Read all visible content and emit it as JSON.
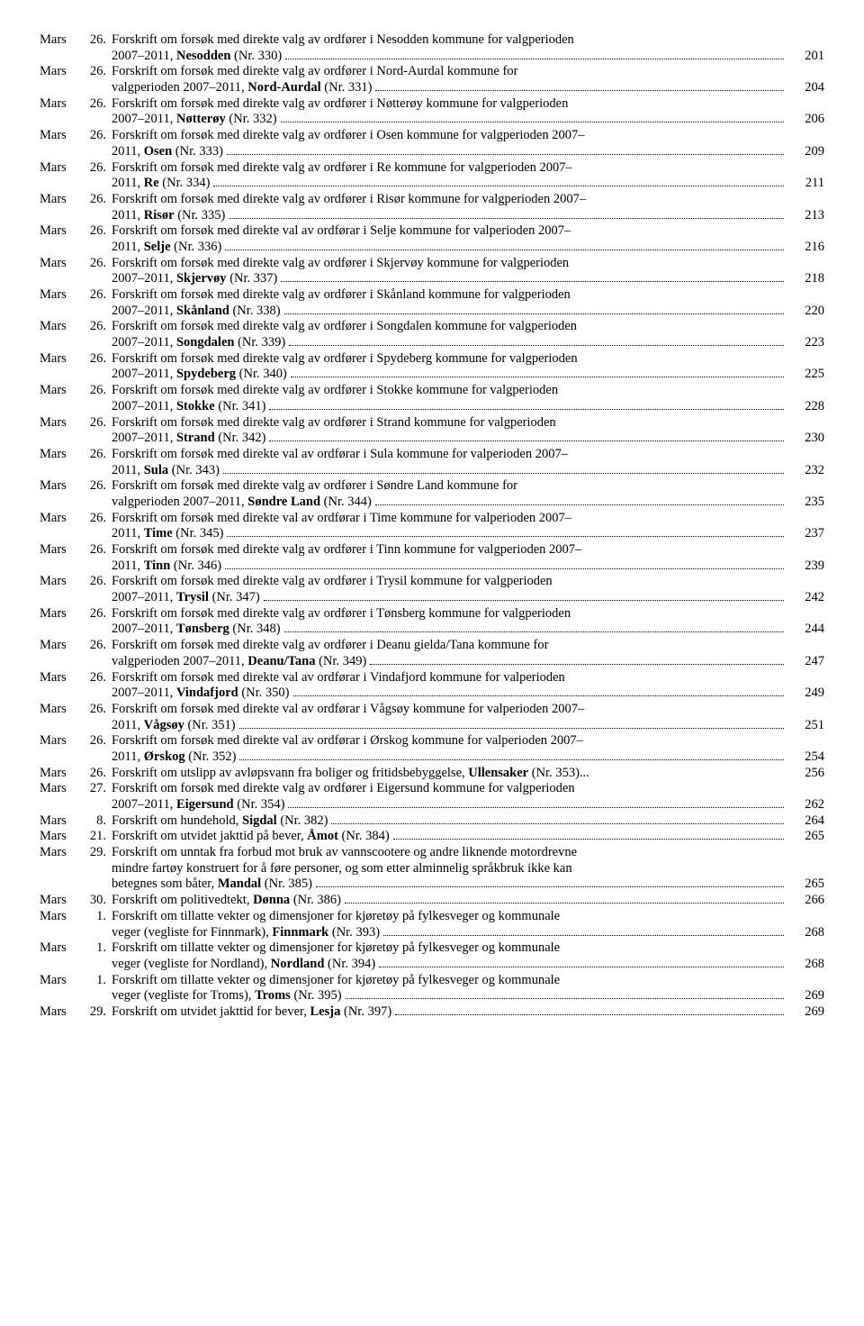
{
  "entries": [
    {
      "month": "Mars",
      "day": "26.",
      "page": "201",
      "lines": [
        {
          "t": "Forskrift om forsøk med direkte valg av ordfører i Nesodden kommune for valgperioden"
        },
        {
          "t": "2007–2011, ",
          "b": "Nesodden",
          "t2": " (Nr. 330)",
          "dots": true
        }
      ]
    },
    {
      "month": "Mars",
      "day": "26.",
      "page": "204",
      "lines": [
        {
          "t": "Forskrift om forsøk med direkte valg av ordfører i Nord-Aurdal kommune for"
        },
        {
          "t": "valgperioden 2007–2011, ",
          "b": "Nord-Aurdal",
          "t2": " (Nr. 331)",
          "dots": true
        }
      ]
    },
    {
      "month": "Mars",
      "day": "26.",
      "page": "206",
      "lines": [
        {
          "t": "Forskrift om forsøk med direkte valg av ordfører i Nøtterøy kommune for valgperioden"
        },
        {
          "t": "2007–2011, ",
          "b": "Nøtterøy",
          "t2": " (Nr. 332)",
          "dots": true
        }
      ]
    },
    {
      "month": "Mars",
      "day": "26.",
      "page": "209",
      "lines": [
        {
          "t": "Forskrift om forsøk med direkte valg av ordfører i Osen kommune for valgperioden 2007–"
        },
        {
          "t": "2011, ",
          "b": "Osen",
          "t2": " (Nr. 333)",
          "dots": true
        }
      ]
    },
    {
      "month": "Mars",
      "day": "26.",
      "page": "211",
      "lines": [
        {
          "t": "Forskrift om forsøk med direkte valg av ordfører i Re kommune for valgperioden 2007–"
        },
        {
          "t": "2011, ",
          "b": "Re",
          "t2": " (Nr. 334)",
          "dots": true
        }
      ]
    },
    {
      "month": "Mars",
      "day": "26.",
      "page": "213",
      "lines": [
        {
          "t": "Forskrift om forsøk med direkte valg av ordfører i Risør kommune for valgperioden 2007–"
        },
        {
          "t": "2011, ",
          "b": "Risør",
          "t2": " (Nr. 335)",
          "dots": true
        }
      ]
    },
    {
      "month": "Mars",
      "day": "26.",
      "page": "216",
      "lines": [
        {
          "t": "Forskrift om forsøk med direkte val av ordførar i Selje kommune for valperioden 2007–"
        },
        {
          "t": "2011, ",
          "b": "Selje",
          "t2": " (Nr. 336)",
          "dots": true
        }
      ]
    },
    {
      "month": "Mars",
      "day": "26.",
      "page": "218",
      "lines": [
        {
          "t": "Forskrift om forsøk med direkte valg av ordfører i Skjervøy kommune for valgperioden"
        },
        {
          "t": "2007–2011, ",
          "b": "Skjervøy",
          "t2": " (Nr. 337)",
          "dots": true
        }
      ]
    },
    {
      "month": "Mars",
      "day": "26.",
      "page": "220",
      "lines": [
        {
          "t": "Forskrift om forsøk med direkte valg av ordfører i Skånland kommune for valgperioden"
        },
        {
          "t": "2007–2011, ",
          "b": "Skånland",
          "t2": " (Nr. 338)",
          "dots": true
        }
      ]
    },
    {
      "month": "Mars",
      "day": "26.",
      "page": "223",
      "lines": [
        {
          "t": "Forskrift om forsøk med direkte valg av ordfører i Songdalen kommune for valgperioden"
        },
        {
          "t": "2007–2011, ",
          "b": "Songdalen",
          "t2": " (Nr. 339)",
          "dots": true
        }
      ]
    },
    {
      "month": "Mars",
      "day": "26.",
      "page": "225",
      "lines": [
        {
          "t": "Forskrift om forsøk med direkte valg av ordfører i Spydeberg kommune for valgperioden"
        },
        {
          "t": "2007–2011, ",
          "b": "Spydeberg",
          "t2": " (Nr. 340)",
          "dots": true
        }
      ]
    },
    {
      "month": "Mars",
      "day": "26.",
      "page": "228",
      "lines": [
        {
          "t": "Forskrift om forsøk med direkte valg av ordfører i Stokke kommune for valgperioden"
        },
        {
          "t": "2007–2011, ",
          "b": "Stokke",
          "t2": " (Nr. 341)",
          "dots": true
        }
      ]
    },
    {
      "month": "Mars",
      "day": "26.",
      "page": "230",
      "lines": [
        {
          "t": "Forskrift om forsøk med direkte valg av ordfører i Strand kommune for valgperioden"
        },
        {
          "t": "2007–2011, ",
          "b": "Strand",
          "t2": " (Nr. 342)",
          "dots": true
        }
      ]
    },
    {
      "month": "Mars",
      "day": "26.",
      "page": "232",
      "lines": [
        {
          "t": "Forskrift om forsøk med direkte val av ordførar i Sula kommune for valperioden 2007–"
        },
        {
          "t": "2011, ",
          "b": "Sula",
          "t2": " (Nr. 343)",
          "dots": true
        }
      ]
    },
    {
      "month": "Mars",
      "day": "26.",
      "page": "235",
      "lines": [
        {
          "t": "Forskrift om forsøk med direkte valg av ordfører i Søndre Land kommune for"
        },
        {
          "t": "valgperioden 2007–2011, ",
          "b": "Søndre Land",
          "t2": " (Nr. 344)",
          "dots": true
        }
      ]
    },
    {
      "month": "Mars",
      "day": "26.",
      "page": "237",
      "lines": [
        {
          "t": "Forskrift om forsøk med direkte val av ordførar i Time kommune for valperioden 2007–"
        },
        {
          "t": "2011, ",
          "b": "Time",
          "t2": " (Nr. 345)",
          "dots": true
        }
      ]
    },
    {
      "month": "Mars",
      "day": "26.",
      "page": "239",
      "lines": [
        {
          "t": "Forskrift om forsøk med direkte valg av ordfører i Tinn kommune for valgperioden 2007–"
        },
        {
          "t": "2011, ",
          "b": "Tinn",
          "t2": " (Nr. 346)",
          "dots": true
        }
      ]
    },
    {
      "month": "Mars",
      "day": "26.",
      "page": "242",
      "lines": [
        {
          "t": "Forskrift om forsøk med direkte valg av ordfører i Trysil kommune for valgperioden"
        },
        {
          "t": "2007–2011, ",
          "b": "Trysil",
          "t2": " (Nr. 347)",
          "dots": true
        }
      ]
    },
    {
      "month": "Mars",
      "day": "26.",
      "page": "244",
      "lines": [
        {
          "t": "Forskrift om forsøk med direkte valg av ordfører i Tønsberg kommune for valgperioden"
        },
        {
          "t": "2007–2011, ",
          "b": "Tønsberg",
          "t2": " (Nr. 348)",
          "dots": true
        }
      ]
    },
    {
      "month": "Mars",
      "day": "26.",
      "page": "247",
      "lines": [
        {
          "t": "Forskrift om forsøk med direkte valg av ordfører i Deanu gielda/Tana kommune for"
        },
        {
          "t": "valgperioden 2007–2011, ",
          "b": "Deanu/Tana",
          "t2": " (Nr. 349)",
          "dots": true
        }
      ]
    },
    {
      "month": "Mars",
      "day": "26.",
      "page": "249",
      "lines": [
        {
          "t": "Forskrift om forsøk med direkte val av ordførar i Vindafjord kommune for valperioden"
        },
        {
          "t": "2007–2011, ",
          "b": "Vindafjord",
          "t2": " (Nr. 350)",
          "dots": true
        }
      ]
    },
    {
      "month": "Mars",
      "day": "26.",
      "page": "251",
      "lines": [
        {
          "t": "Forskrift om forsøk med direkte val av ordførar i Vågsøy kommune for valperioden 2007–"
        },
        {
          "t": "2011, ",
          "b": "Vågsøy",
          "t2": " (Nr. 351)",
          "dots": true
        }
      ]
    },
    {
      "month": "Mars",
      "day": "26.",
      "page": "254",
      "lines": [
        {
          "t": "Forskrift om forsøk med direkte val av ordførar i Ørskog kommune for valperioden 2007–"
        },
        {
          "t": "2011, ",
          "b": "Ørskog",
          "t2": " (Nr. 352)",
          "dots": true
        }
      ]
    },
    {
      "month": "Mars",
      "day": "26.",
      "page": "256",
      "lines": [
        {
          "t": "Forskrift om utslipp av avløpsvann fra boliger og fritidsbebyggelse, ",
          "b": "Ullensaker",
          "t2": " (Nr. 353)...",
          "dots": false
        }
      ]
    },
    {
      "month": "Mars",
      "day": "27.",
      "page": "262",
      "lines": [
        {
          "t": "Forskrift om forsøk med direkte valg av ordfører i Eigersund kommune for valgperioden"
        },
        {
          "t": "2007–2011, ",
          "b": "Eigersund",
          "t2": " (Nr. 354)",
          "dots": true
        }
      ]
    },
    {
      "month": "Mars",
      "day": "8.",
      "page": "264",
      "lines": [
        {
          "t": "Forskrift om hundehold, ",
          "b": "Sigdal",
          "t2": " (Nr. 382)",
          "dots": true
        }
      ]
    },
    {
      "month": "Mars",
      "day": "21.",
      "page": "265",
      "lines": [
        {
          "t": "Forskrift om utvidet jakttid på bever, ",
          "b": "Åmot",
          "t2": " (Nr. 384)",
          "dots": true
        }
      ]
    },
    {
      "month": "Mars",
      "day": "29.",
      "page": "265",
      "lines": [
        {
          "t": "Forskrift om unntak fra forbud mot bruk av vannscootere og andre liknende motordrevne"
        },
        {
          "t": "mindre fartøy konstruert for å føre personer, og som etter alminnelig språkbruk ikke kan"
        },
        {
          "t": "betegnes som båter, ",
          "b": "Mandal",
          "t2": " (Nr. 385)",
          "dots": true
        }
      ]
    },
    {
      "month": "Mars",
      "day": "30.",
      "page": "266",
      "lines": [
        {
          "t": "Forskrift om politivedtekt, ",
          "b": "Dønna",
          "t2": " (Nr. 386)",
          "dots": true
        }
      ]
    },
    {
      "month": "Mars",
      "day": "1.",
      "page": "268",
      "lines": [
        {
          "t": "Forskrift om tillatte vekter og dimensjoner for kjøretøy på fylkesveger og kommunale"
        },
        {
          "t": "veger (vegliste for Finnmark), ",
          "b": "Finnmark",
          "t2": " (Nr. 393)",
          "dots": true
        }
      ]
    },
    {
      "month": "Mars",
      "day": "1.",
      "page": "268",
      "lines": [
        {
          "t": "Forskrift om tillatte vekter og dimensjoner for kjøretøy på fylkesveger og kommunale"
        },
        {
          "t": "veger (vegliste for Nordland), ",
          "b": "Nordland",
          "t2": " (Nr. 394)",
          "dots": true
        }
      ]
    },
    {
      "month": "Mars",
      "day": "1.",
      "page": "269",
      "lines": [
        {
          "t": "Forskrift om tillatte vekter og dimensjoner for kjøretøy på fylkesveger og kommunale"
        },
        {
          "t": "veger (vegliste for Troms), ",
          "b": "Troms",
          "t2": " (Nr. 395)",
          "dots": true
        }
      ]
    },
    {
      "month": "Mars",
      "day": "29.",
      "page": "269",
      "lines": [
        {
          "t": "Forskrift om utvidet jakttid for bever, ",
          "b": "Lesja",
          "t2": " (Nr. 397)",
          "dots": true
        }
      ]
    }
  ]
}
